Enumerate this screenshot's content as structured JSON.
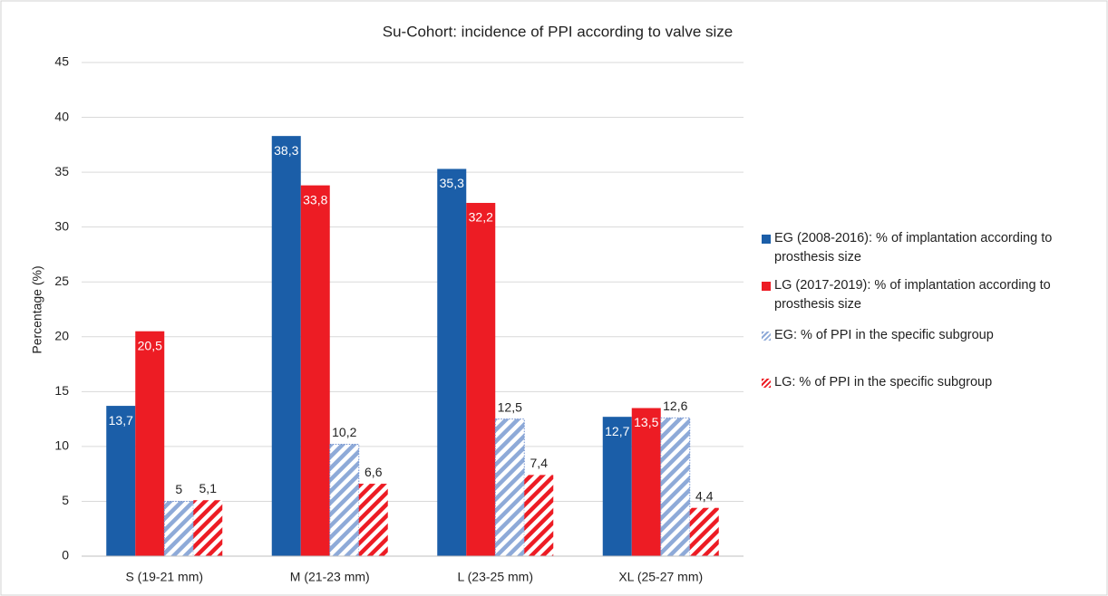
{
  "chart_data": {
    "type": "bar",
    "title": "Su-Cohort: incidence of PPI according to valve size",
    "ylabel": "Percentage (%)",
    "categories": [
      "S (19-21 mm)",
      "M (21-23 mm)",
      "L (23-25 mm)",
      "XL (25-27 mm)"
    ],
    "series": [
      {
        "name": "EG (2008-2016): % of implantation according to prosthesis size",
        "color": "#1b5ea8",
        "hatch": false,
        "label_position": "inside",
        "values": [
          13.7,
          38.3,
          35.3,
          12.7
        ],
        "value_labels": [
          "13,7",
          "38,3",
          "35,3",
          "12,7"
        ]
      },
      {
        "name": "LG (2017-2019): % of implantation according to prosthesis size",
        "color": "#ed1c24",
        "hatch": false,
        "label_position": "inside",
        "values": [
          20.5,
          33.8,
          32.2,
          13.5
        ],
        "value_labels": [
          "20,5",
          "33,8",
          "32,2",
          "13,5"
        ]
      },
      {
        "name": "EG: % of PPI in the specific subgroup",
        "color": "#8eaad8",
        "hatch": true,
        "label_position": "above",
        "values": [
          5,
          10.2,
          12.5,
          12.6
        ],
        "value_labels": [
          "5",
          "10,2",
          "12,5",
          "12,6"
        ]
      },
      {
        "name": "LG: % of PPI in the specific subgroup",
        "color": "#ed1c24",
        "hatch": true,
        "label_position": "above",
        "values": [
          5.1,
          6.6,
          7.4,
          4.4
        ],
        "value_labels": [
          "5,1",
          "6,6",
          "7,4",
          "4,4"
        ]
      }
    ],
    "ylim": [
      0,
      45
    ],
    "yticks": [
      0,
      5,
      10,
      15,
      20,
      25,
      30,
      35,
      40,
      45
    ],
    "grid": true,
    "legend": "right"
  }
}
